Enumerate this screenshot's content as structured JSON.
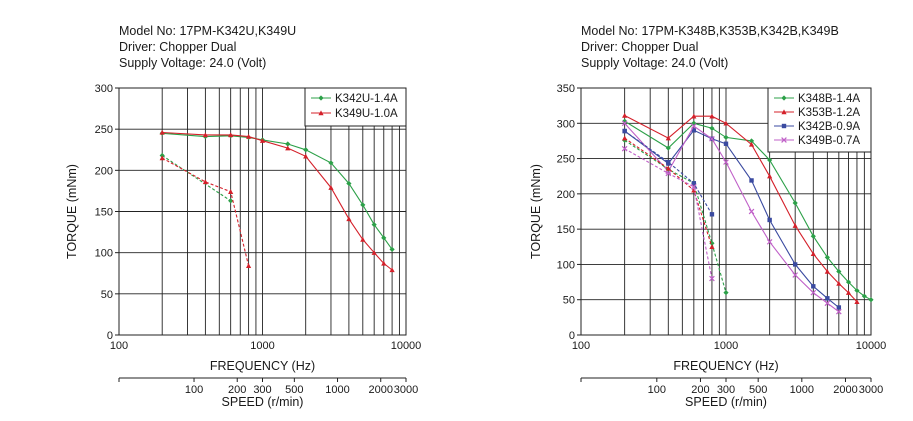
{
  "chart_data": [
    {
      "type": "line",
      "header_lines": [
        "Model No: 17PM-K342U,K349U",
        "Driver: Chopper Dual",
        "Supply Voltage: 24.0 (Volt)"
      ],
      "title": "Model No: 17PM-K342U,K349U",
      "subtitle": "Driver: Chopper Dual / Supply Voltage: 24.0 (Volt)",
      "xlabel": "FREQUENCY (Hz)",
      "ylabel": "TORQUE (mNm)",
      "x_scale": "log",
      "xlim": [
        100,
        10000
      ],
      "ylim": [
        0,
        300
      ],
      "y_ticks": [
        0,
        50,
        100,
        150,
        200,
        250,
        300
      ],
      "x_tick_labels": [
        {
          "value": 100,
          "label": "100"
        },
        {
          "value": 1000,
          "label": "1000"
        },
        {
          "value": 10000,
          "label": "10000"
        }
      ],
      "secondary_xlabel": "SPEED (r/min)",
      "secondary_x_ticks": [
        {
          "freq": 333.3,
          "label": "100"
        },
        {
          "freq": 666.7,
          "label": "200"
        },
        {
          "freq": 1000,
          "label": "300"
        },
        {
          "freq": 1667,
          "label": "500"
        },
        {
          "freq": 3333,
          "label": "1000"
        },
        {
          "freq": 6667,
          "label": "2000"
        },
        {
          "freq": 10000,
          "label": "3000"
        }
      ],
      "grid": true,
      "legend_position": "top-right",
      "series": [
        {
          "name": "K342U-1.4A",
          "color": "#2ca048",
          "marker": "diamond",
          "dashed": false,
          "x": [
            200,
            400,
            600,
            800,
            1000,
            1500,
            2000,
            3000,
            4000,
            5000,
            6000,
            7000,
            8000
          ],
          "y": [
            245,
            241,
            242,
            240,
            237,
            232,
            225,
            209,
            184,
            158,
            134,
            118,
            104
          ]
        },
        {
          "name": "K349U-1.0A",
          "color": "#d4202a",
          "marker": "triangle",
          "dashed": false,
          "x": [
            200,
            400,
            600,
            800,
            1000,
            1500,
            2000,
            3000,
            4000,
            5000,
            6000,
            7000,
            8000
          ],
          "y": [
            246,
            243,
            243,
            241,
            236,
            227,
            217,
            179,
            141,
            116,
            100,
            87,
            79
          ]
        },
        {
          "name": "",
          "color": "#2ca048",
          "marker": "diamond",
          "dashed": true,
          "x": [
            200,
            600
          ],
          "y": [
            218,
            163
          ]
        },
        {
          "name": "",
          "color": "#d4202a",
          "marker": "triangle",
          "dashed": true,
          "x": [
            200,
            400,
            600,
            800
          ],
          "y": [
            215,
            186,
            174,
            84
          ]
        }
      ]
    },
    {
      "type": "line",
      "header_lines": [
        "Model No: 17PM-K348B,K353B,K342B,K349B",
        "Driver: Chopper Dual",
        "Supply Voltage: 24.0 (Volt)"
      ],
      "title": "Model No: 17PM-K348B,K353B,K342B,K349B",
      "subtitle": "Driver: Chopper Dual / Supply Voltage: 24.0 (Volt)",
      "xlabel": "FREQUENCY (Hz)",
      "ylabel": "TORQUE (mNm)",
      "x_scale": "log",
      "xlim": [
        100,
        10000
      ],
      "ylim": [
        0,
        350
      ],
      "y_ticks": [
        0,
        50,
        100,
        150,
        200,
        250,
        300,
        350
      ],
      "x_tick_labels": [
        {
          "value": 100,
          "label": "100"
        },
        {
          "value": 1000,
          "label": "1000"
        },
        {
          "value": 10000,
          "label": "10000"
        }
      ],
      "secondary_xlabel": "SPEED (r/min)",
      "secondary_x_ticks": [
        {
          "freq": 333.3,
          "label": "100"
        },
        {
          "freq": 666.7,
          "label": "200"
        },
        {
          "freq": 1000,
          "label": "300"
        },
        {
          "freq": 1667,
          "label": "500"
        },
        {
          "freq": 3333,
          "label": "1000"
        },
        {
          "freq": 6667,
          "label": "2000"
        },
        {
          "freq": 10000,
          "label": "3000"
        }
      ],
      "grid": true,
      "legend_position": "top-right",
      "series": [
        {
          "name": "K348B-1.4A",
          "color": "#2ca048",
          "marker": "diamond",
          "dashed": false,
          "x": [
            200,
            400,
            600,
            800,
            1000,
            1500,
            2000,
            3000,
            4000,
            5000,
            6000,
            7000,
            8000,
            9000,
            10000
          ],
          "y": [
            303,
            265,
            300,
            293,
            280,
            275,
            248,
            187,
            140,
            110,
            90,
            75,
            63,
            55,
            50
          ]
        },
        {
          "name": "K353B-1.2A",
          "color": "#d4202a",
          "marker": "triangle",
          "dashed": false,
          "x": [
            200,
            400,
            600,
            800,
            1000,
            1500,
            2000,
            3000,
            4000,
            5000,
            6000,
            7000,
            8000
          ],
          "y": [
            311,
            279,
            310,
            310,
            300,
            270,
            225,
            155,
            115,
            90,
            73,
            60,
            47
          ]
        },
        {
          "name": "K342B-0.9A",
          "color": "#3a4aa0",
          "marker": "square",
          "dashed": false,
          "x": [
            200,
            400,
            600,
            800,
            1000,
            1500,
            2000,
            3000,
            4000,
            5000,
            6000
          ],
          "y": [
            289,
            243,
            290,
            278,
            271,
            219,
            163,
            100,
            69,
            52,
            39
          ]
        },
        {
          "name": "K349B-0.7A",
          "color": "#c060c8",
          "marker": "x",
          "dashed": false,
          "x": [
            200,
            400,
            600,
            800,
            1000,
            1500,
            2000,
            3000,
            4000,
            5000,
            6000
          ],
          "y": [
            300,
            232,
            296,
            278,
            245,
            175,
            132,
            85,
            60,
            45,
            33
          ]
        },
        {
          "name": "",
          "color": "#2ca048",
          "marker": "diamond",
          "dashed": true,
          "x": [
            200,
            400,
            600,
            800,
            1000
          ],
          "y": [
            276,
            235,
            215,
            130,
            60
          ]
        },
        {
          "name": "",
          "color": "#d4202a",
          "marker": "triangle",
          "dashed": true,
          "x": [
            200,
            400,
            600,
            800
          ],
          "y": [
            279,
            236,
            205,
            125
          ]
        },
        {
          "name": "",
          "color": "#3a4aa0",
          "marker": "square",
          "dashed": true,
          "x": [
            200,
            400,
            600,
            800
          ],
          "y": [
            289,
            245,
            215,
            171
          ]
        },
        {
          "name": "",
          "color": "#c060c8",
          "marker": "x",
          "dashed": true,
          "x": [
            200,
            400,
            600,
            800
          ],
          "y": [
            264,
            229,
            210,
            80
          ]
        }
      ]
    }
  ]
}
